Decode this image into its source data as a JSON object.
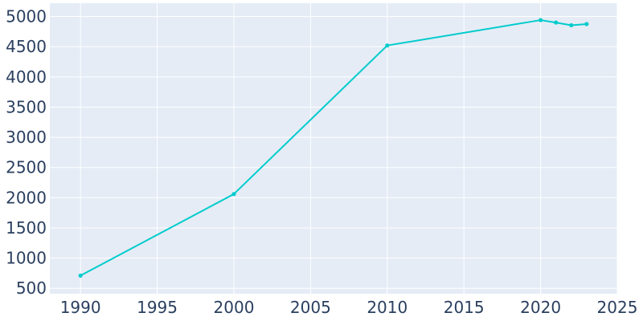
{
  "chart_data": {
    "type": "line",
    "title": "",
    "xlabel": "",
    "ylabel": "",
    "x": [
      1990,
      2000,
      2010,
      2020,
      2021,
      2022,
      2023
    ],
    "series": [
      {
        "values": [
          710,
          2060,
          4520,
          4940,
          4900,
          4855,
          4875
        ]
      }
    ],
    "xlim": [
      1988,
      2025
    ],
    "ylim": [
      410,
      5220
    ],
    "x_ticks": [
      1990,
      1995,
      2000,
      2005,
      2010,
      2015,
      2020,
      2025
    ],
    "y_ticks": [
      500,
      1000,
      1500,
      2000,
      2500,
      3000,
      3500,
      4000,
      4500,
      5000
    ],
    "grid": true,
    "legend": "none",
    "colors": {
      "plot_bg": "#e5ecf6",
      "grid": "#ffffff",
      "line": "#00cccc",
      "text": "#2a3f5f"
    }
  }
}
